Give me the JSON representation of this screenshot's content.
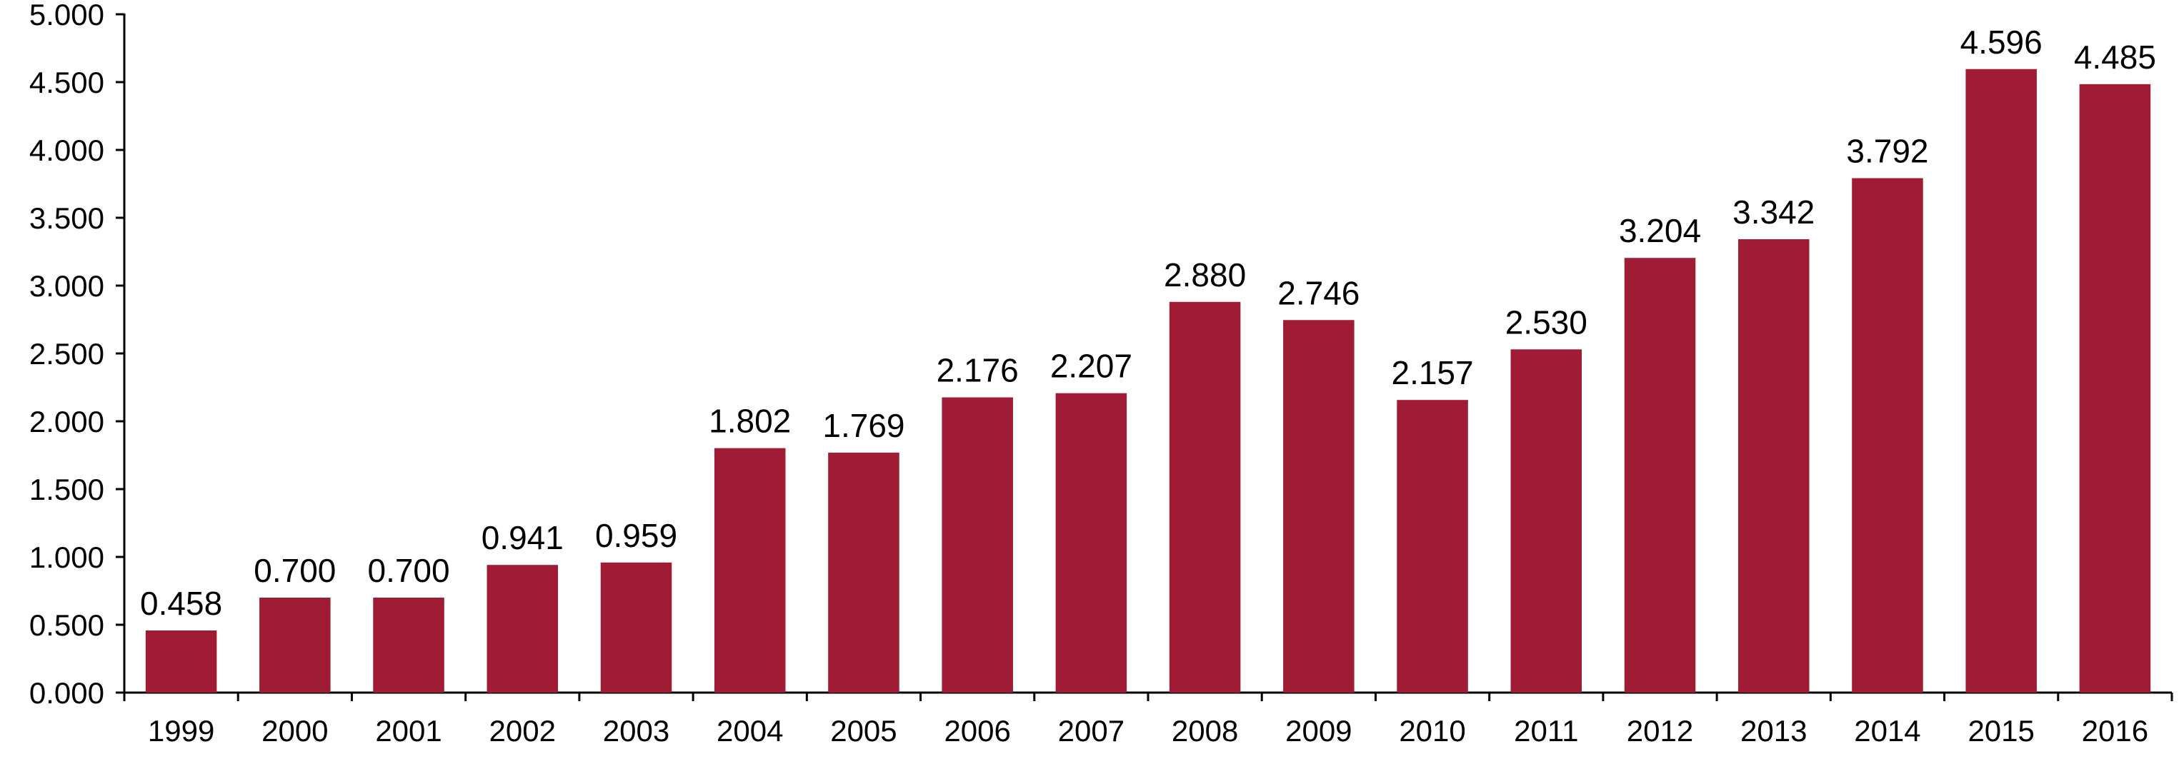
{
  "colors": {
    "bar": "#A01C34",
    "axis": "#000000",
    "text": "#000000",
    "background": "#FFFFFF"
  },
  "chart_data": {
    "type": "bar",
    "title": "",
    "xlabel": "",
    "ylabel": "",
    "ylim": [
      0,
      5
    ],
    "y_ticks": [
      0,
      0.5,
      1,
      1.5,
      2,
      2.5,
      3,
      3.5,
      4,
      4.5,
      5
    ],
    "y_tick_labels": [
      "0.000",
      "0.500",
      "1.000",
      "1.500",
      "2.000",
      "2.500",
      "3.000",
      "3.500",
      "4.000",
      "4.500",
      "5.000"
    ],
    "grid": false,
    "legend": "none",
    "categories": [
      "1999",
      "2000",
      "2001",
      "2002",
      "2003",
      "2004",
      "2005",
      "2006",
      "2007",
      "2008",
      "2009",
      "2010",
      "2011",
      "2012",
      "2013",
      "2014",
      "2015",
      "2016"
    ],
    "values": [
      0.458,
      0.7,
      0.7,
      0.941,
      0.959,
      1.802,
      1.769,
      2.176,
      2.207,
      2.88,
      2.746,
      2.157,
      2.53,
      3.204,
      3.342,
      3.792,
      4.596,
      4.485
    ],
    "data_labels": [
      "0.458",
      "0.700",
      "0.700",
      "0.941",
      "0.959",
      "1.802",
      "1.769",
      "2.176",
      "2.207",
      "2.880",
      "2.746",
      "2.157",
      "2.530",
      "3.204",
      "3.342",
      "3.792",
      "4.596",
      "4.485"
    ]
  }
}
